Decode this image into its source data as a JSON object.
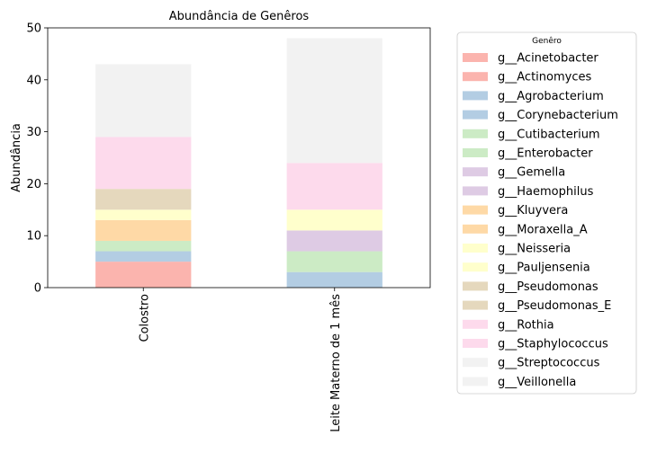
{
  "chart_data": {
    "type": "bar",
    "stacked": true,
    "title": "Abundância de Genêros",
    "xlabel": "",
    "ylabel": "Abundância",
    "ylim": [
      0,
      50
    ],
    "yticks": [
      0,
      10,
      20,
      30,
      40,
      50
    ],
    "grid": false,
    "legend": {
      "title": "Genêro",
      "placement": "outside-right"
    },
    "categories": [
      "Colostro",
      "Leite Materno de 1 mês"
    ],
    "series": [
      {
        "name": "g__Acinetobacter",
        "color": "#fbb4ae",
        "values": [
          5,
          0
        ]
      },
      {
        "name": "g__Actinomyces",
        "color": "#fbb4ae",
        "values": [
          0,
          0
        ]
      },
      {
        "name": "g__Agrobacterium",
        "color": "#b3cde3",
        "values": [
          2,
          3
        ]
      },
      {
        "name": "g__Corynebacterium",
        "color": "#b3cde3",
        "values": [
          0,
          0
        ]
      },
      {
        "name": "g__Cutibacterium",
        "color": "#ccebc5",
        "values": [
          2,
          4
        ]
      },
      {
        "name": "g__Enterobacter",
        "color": "#ccebc5",
        "values": [
          0,
          0
        ]
      },
      {
        "name": "g__Gemella",
        "color": "#decbe4",
        "values": [
          0,
          4
        ]
      },
      {
        "name": "g__Haemophilus",
        "color": "#decbe4",
        "values": [
          0,
          0
        ]
      },
      {
        "name": "g__Kluyvera",
        "color": "#fed9a6",
        "values": [
          4,
          0
        ]
      },
      {
        "name": "g__Moraxella_A",
        "color": "#fed9a6",
        "values": [
          0,
          0
        ]
      },
      {
        "name": "g__Neisseria",
        "color": "#ffffcc",
        "values": [
          2,
          4
        ]
      },
      {
        "name": "g__Pauljensenia",
        "color": "#ffffcc",
        "values": [
          0,
          0
        ]
      },
      {
        "name": "g__Pseudomonas",
        "color": "#e5d8bd",
        "values": [
          4,
          0
        ]
      },
      {
        "name": "g__Pseudomonas_E",
        "color": "#e5d8bd",
        "values": [
          0,
          0
        ]
      },
      {
        "name": "g__Rothia",
        "color": "#fddaec",
        "values": [
          10,
          9
        ]
      },
      {
        "name": "g__Staphylococcus",
        "color": "#fddaec",
        "values": [
          0,
          0
        ]
      },
      {
        "name": "g__Streptococcus",
        "color": "#f2f2f2",
        "values": [
          14,
          24
        ]
      },
      {
        "name": "g__Veillonella",
        "color": "#f2f2f2",
        "values": [
          0,
          0
        ]
      }
    ]
  }
}
